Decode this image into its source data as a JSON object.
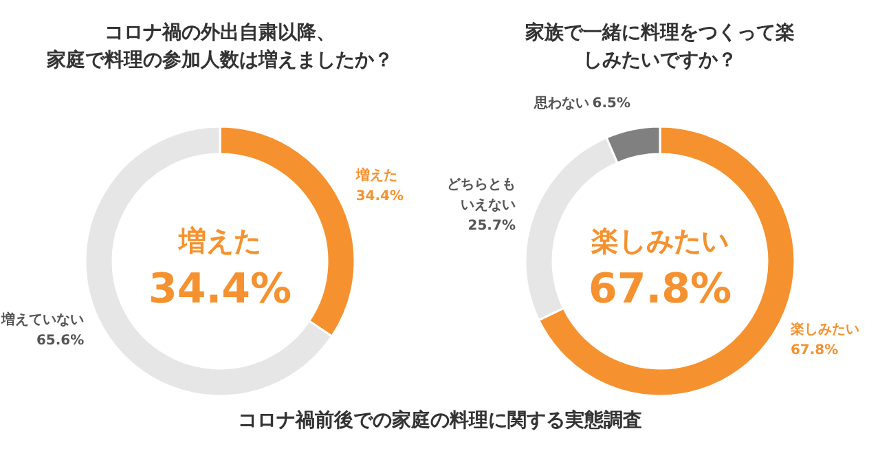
{
  "chart_data": [
    {
      "type": "donut",
      "title": "コロナ禍の外出自粛以降、家庭で料理の参加人数は増えましたか？",
      "categories": [
        "増えた",
        "増えていない"
      ],
      "values": [
        34.4,
        65.6
      ],
      "value_labels": [
        "34.4%",
        "65.6%"
      ],
      "colors": [
        "#f5922f",
        "#e6e6e6"
      ],
      "annotations": [
        "増えた\n34.4%"
      ]
    },
    {
      "type": "donut",
      "title": "家族で一緒に料理をつくって楽しみたいですか？",
      "categories": [
        "楽しみたい",
        "どちらともいえない",
        "思わない"
      ],
      "values": [
        67.8,
        25.7,
        6.5
      ],
      "value_labels": [
        "67.8%",
        "25.7%",
        "6.5%"
      ],
      "colors": [
        "#f5922f",
        "#e6e6e6",
        "#808080"
      ],
      "annotations": [
        "楽しみたい\n67.8%",
        "コロナ禍前後での家庭の料理に関する実態調査"
      ]
    }
  ]
}
